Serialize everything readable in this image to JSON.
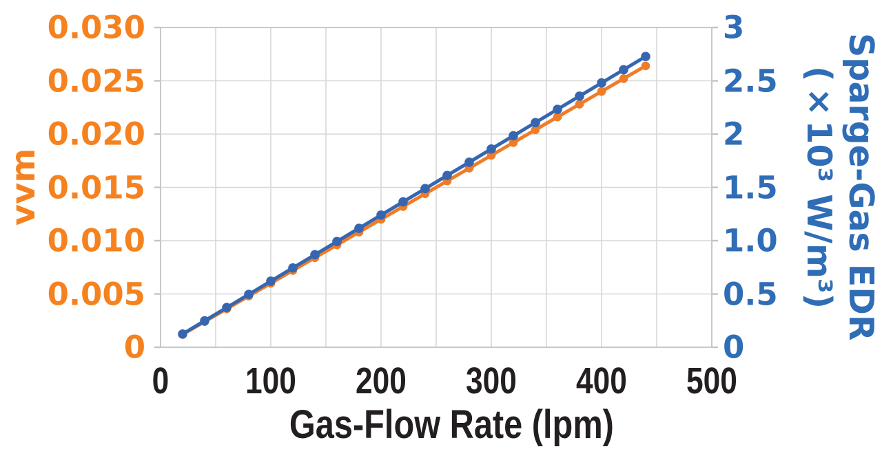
{
  "chart_data": {
    "type": "line",
    "title": "",
    "xlabel": "Gas-Flow Rate (lpm)",
    "grid": true,
    "legend": "none",
    "x_axis": {
      "min": 0,
      "max": 500,
      "grid_step": 50,
      "tick_values": [
        0,
        100,
        200,
        300,
        400,
        500
      ],
      "tick_labels": [
        "0",
        "100",
        "200",
        "300",
        "400",
        "500"
      ]
    },
    "left_axis": {
      "title": "vvm",
      "min": 0,
      "max": 0.03,
      "tick_labels": [
        "0.030",
        "0.025",
        "0.020",
        "0.015",
        "0.010",
        "0.005",
        "0"
      ],
      "color": "#f5821f"
    },
    "right_axis": {
      "title_line1": "Sparge-Gas EDR",
      "title_line2": "(×10³ W/m³)",
      "min": 0,
      "max": 3,
      "tick_labels": [
        "3",
        "2.5",
        "2",
        "1.5",
        "1.0",
        "0.5",
        "0"
      ],
      "color": "#2f6db6"
    },
    "x": [
      20,
      40,
      60,
      80,
      100,
      120,
      140,
      160,
      180,
      200,
      220,
      240,
      260,
      280,
      300,
      320,
      340,
      360,
      380,
      400,
      420,
      440
    ],
    "series": [
      {
        "name": "vvm",
        "axis": "left",
        "color": "#ef7c29",
        "marker_radius": 6.3,
        "line_width": 5,
        "values": [
          0.0012,
          0.0024,
          0.0036,
          0.0048,
          0.006,
          0.0072,
          0.0084,
          0.0096,
          0.0108,
          0.012,
          0.0132,
          0.0144,
          0.0156,
          0.0168,
          0.018,
          0.0192,
          0.0204,
          0.0216,
          0.0228,
          0.024,
          0.0252,
          0.0264
        ]
      },
      {
        "name": "Sparge-Gas EDR",
        "axis": "right",
        "color": "#3766b1",
        "marker_radius": 6.8,
        "line_width": 5,
        "values": [
          0.124,
          0.248,
          0.372,
          0.496,
          0.62,
          0.744,
          0.868,
          0.992,
          1.116,
          1.24,
          1.364,
          1.488,
          1.612,
          1.736,
          1.86,
          1.984,
          2.108,
          2.232,
          2.356,
          2.48,
          2.604,
          2.728
        ]
      }
    ],
    "colors": {
      "gridline": "#d7d7d7",
      "plot_border": "#c8c8c8",
      "x_text": "#231f20"
    }
  }
}
